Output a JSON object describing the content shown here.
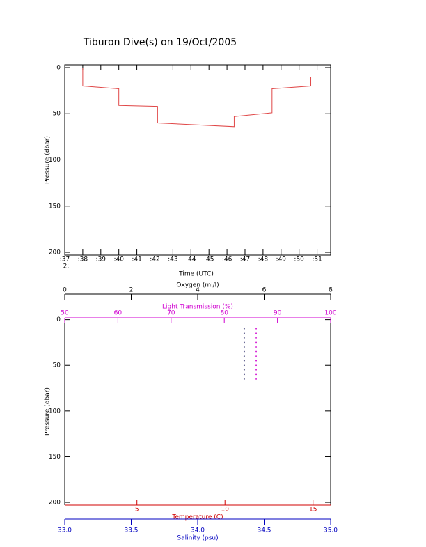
{
  "chart_data": [
    {
      "type": "line",
      "title": "Tiburon Dive(s) on 19/Oct/2005",
      "xlabel": "Time (UTC)",
      "ylabel": "Pressure (dbar)",
      "xlim": [
        37,
        51.75
      ],
      "xticks": [
        {
          "value": 37,
          "label": ":37"
        },
        {
          "value": 38,
          "label": ":38"
        },
        {
          "value": 39,
          "label": ":39"
        },
        {
          "value": 40,
          "label": ":40"
        },
        {
          "value": 41,
          "label": ":41"
        },
        {
          "value": 42,
          "label": ":42"
        },
        {
          "value": 43,
          "label": ":43"
        },
        {
          "value": 44,
          "label": ":44"
        },
        {
          "value": 45,
          "label": ":45"
        },
        {
          "value": 46,
          "label": ":46"
        },
        {
          "value": 47,
          "label": ":47"
        },
        {
          "value": 48,
          "label": ":48"
        },
        {
          "value": 49,
          "label": ":49"
        },
        {
          "value": 50,
          "label": ":50"
        },
        {
          "value": 51,
          "label": ":51"
        }
      ],
      "annotation": "2:",
      "ylim": [
        -3,
        203
      ],
      "yticks": [
        0,
        50,
        100,
        150,
        200
      ],
      "y_inverted": true,
      "series": [
        {
          "color": "#e04848",
          "x": [
            38.0,
            38.0,
            40.0,
            40.0,
            42.15,
            42.15,
            46.4,
            46.4,
            48.5,
            48.5,
            50.65,
            50.65
          ],
          "values": [
            0,
            20,
            23,
            41,
            42,
            60,
            64,
            53,
            49,
            23,
            20,
            10
          ]
        }
      ]
    },
    {
      "type": "scatter",
      "ylabel": "Pressure (dbar)",
      "ylim": [
        -2,
        203
      ],
      "yticks": [
        0,
        50,
        100,
        150,
        200
      ],
      "y_inverted": true,
      "x_axes": [
        {
          "label": "Oxygen (ml/l)",
          "xlim": [
            0,
            8
          ],
          "xticks": [
            0,
            2,
            4,
            6,
            8
          ],
          "color": "#000000",
          "position": "top"
        },
        {
          "label": "Light Transmission (%)",
          "xlim": [
            50,
            100
          ],
          "xticks": [
            50,
            60,
            70,
            80,
            90,
            100
          ],
          "color": "#d000d0",
          "position": "top"
        },
        {
          "label": "Temperature (C)",
          "xlim": [
            0.9,
            16
          ],
          "xticks": [
            5,
            10,
            15
          ],
          "color": "#d00000",
          "position": "bottom"
        },
        {
          "label": "Salinity (psu)",
          "xlim": [
            33,
            35
          ],
          "xticks": [
            {
              "value": 33,
              "label": "33.0"
            },
            {
              "value": 33.5,
              "label": "33.5"
            },
            {
              "value": 34,
              "label": "34.0"
            },
            {
              "value": 34.5,
              "label": "34.5"
            },
            {
              "value": 35,
              "label": "35.0"
            }
          ],
          "color": "#0000c0",
          "position": "bottom"
        }
      ],
      "series": [
        {
          "x_axis": 3,
          "color": "#202060",
          "x": [
            34.35,
            34.35,
            34.35,
            34.35,
            34.35,
            34.35,
            34.35,
            34.35,
            34.35,
            34.35,
            34.35,
            34.35
          ],
          "values": [
            10,
            15,
            20,
            25,
            30,
            35,
            40,
            45,
            50,
            55,
            60,
            65
          ]
        },
        {
          "x_axis": 1,
          "color": "#d000d0",
          "x": [
            86,
            86,
            86,
            86,
            86,
            86,
            86,
            86,
            86,
            86,
            86,
            86
          ],
          "values": [
            10,
            15,
            20,
            25,
            30,
            35,
            40,
            45,
            50,
            55,
            60,
            65
          ]
        }
      ]
    }
  ]
}
